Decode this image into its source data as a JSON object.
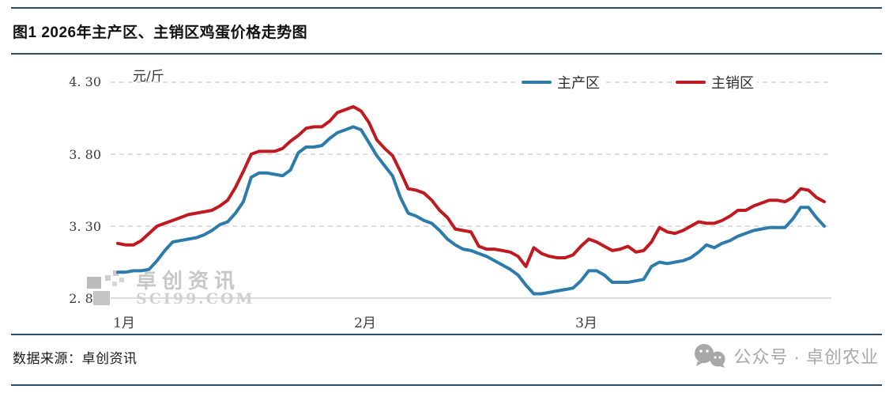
{
  "header": {
    "title": "图1 2026年主产区、主销区鸡蛋价格走势图"
  },
  "watermark": {
    "brand": "卓创资讯",
    "site": "SCI99.COM"
  },
  "footer": {
    "source": "数据来源：卓创资讯",
    "wechat": "公众号 · 卓创农业"
  },
  "chart_data": {
    "type": "line",
    "unit_label": "元/斤",
    "y_ticks": [
      "4. 30",
      "3. 80",
      "3. 30",
      "2. 80"
    ],
    "y_tick_values": [
      4.3,
      3.8,
      3.3,
      2.8
    ],
    "ylim": [
      2.8,
      4.3
    ],
    "x_ticks": [
      "1月",
      "2月",
      "3月"
    ],
    "x_range_note": "daily values from 1月1日 to 4月1日",
    "grid": "horizontal dashed gridlines, solid light baseline at 2.80",
    "legend_position": "top",
    "series": [
      {
        "name": "主产区",
        "color": "#2b7cab",
        "values": [
          2.98,
          2.98,
          2.99,
          2.99,
          3.0,
          3.06,
          3.13,
          3.19,
          3.2,
          3.21,
          3.22,
          3.24,
          3.27,
          3.31,
          3.33,
          3.39,
          3.47,
          3.64,
          3.67,
          3.67,
          3.66,
          3.65,
          3.69,
          3.81,
          3.85,
          3.85,
          3.86,
          3.91,
          3.95,
          3.97,
          3.99,
          3.97,
          3.88,
          3.79,
          3.72,
          3.65,
          3.5,
          3.39,
          3.37,
          3.34,
          3.32,
          3.27,
          3.21,
          3.17,
          3.14,
          3.13,
          3.11,
          3.09,
          3.06,
          3.03,
          3.0,
          2.96,
          2.89,
          2.83,
          2.83,
          2.84,
          2.85,
          2.86,
          2.87,
          2.92,
          2.99,
          2.99,
          2.96,
          2.91,
          2.91,
          2.91,
          2.92,
          2.93,
          3.02,
          3.05,
          3.04,
          3.05,
          3.06,
          3.08,
          3.12,
          3.17,
          3.15,
          3.18,
          3.2,
          3.23,
          3.25,
          3.27,
          3.28,
          3.29,
          3.29,
          3.29,
          3.35,
          3.43,
          3.43,
          3.36,
          3.3
        ]
      },
      {
        "name": "主销区",
        "color": "#c0191f",
        "values": [
          3.18,
          3.17,
          3.17,
          3.2,
          3.25,
          3.3,
          3.32,
          3.34,
          3.36,
          3.38,
          3.39,
          3.4,
          3.41,
          3.44,
          3.48,
          3.57,
          3.68,
          3.8,
          3.82,
          3.82,
          3.82,
          3.84,
          3.89,
          3.93,
          3.98,
          3.99,
          3.99,
          4.03,
          4.09,
          4.11,
          4.13,
          4.1,
          4.02,
          3.9,
          3.84,
          3.79,
          3.68,
          3.56,
          3.55,
          3.53,
          3.48,
          3.41,
          3.36,
          3.28,
          3.27,
          3.26,
          3.16,
          3.14,
          3.14,
          3.13,
          3.12,
          3.09,
          3.02,
          3.15,
          3.11,
          3.09,
          3.08,
          3.08,
          3.1,
          3.16,
          3.21,
          3.19,
          3.16,
          3.13,
          3.14,
          3.16,
          3.12,
          3.13,
          3.19,
          3.29,
          3.26,
          3.25,
          3.27,
          3.3,
          3.33,
          3.32,
          3.32,
          3.34,
          3.37,
          3.41,
          3.41,
          3.44,
          3.46,
          3.48,
          3.48,
          3.47,
          3.5,
          3.56,
          3.55,
          3.5,
          3.47
        ]
      }
    ]
  }
}
